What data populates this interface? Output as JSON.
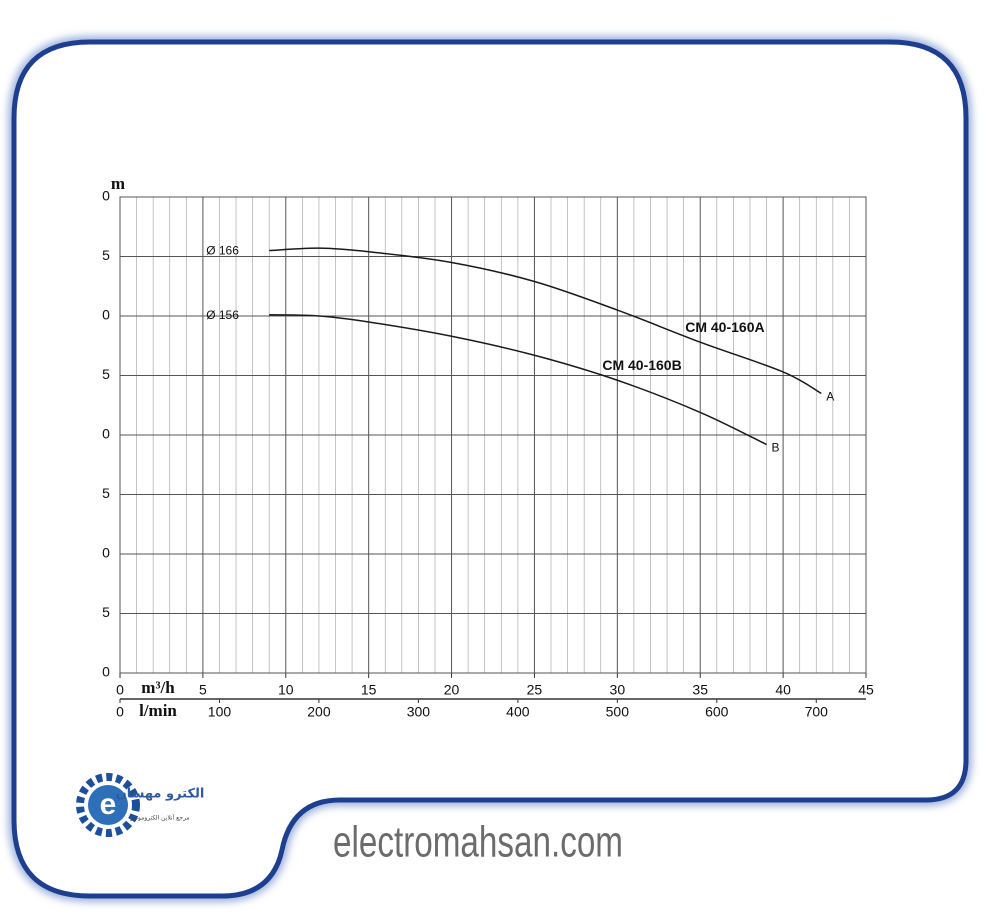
{
  "chart_data": {
    "type": "line",
    "ylabel": "m",
    "xlabel": "m³/h",
    "x2label": "l/min",
    "ylim": [
      0,
      40
    ],
    "yticks": [
      0,
      5,
      {
        "value": 10,
        "label": "0"
      },
      {
        "value": 15,
        "label": "5"
      },
      {
        "value": 20,
        "label": "0"
      },
      {
        "value": 25,
        "label": "5"
      },
      {
        "value": 30,
        "label": "0"
      },
      {
        "value": 35,
        "label": "5"
      },
      {
        "value": 40,
        "label": "0"
      }
    ],
    "xlim": [
      0,
      45
    ],
    "xticks": [
      0,
      5,
      10,
      15,
      20,
      25,
      30,
      35,
      40,
      45
    ],
    "xminorticks": [
      1,
      2,
      3,
      4,
      6,
      7,
      8,
      9,
      11,
      12,
      13,
      14,
      16,
      17,
      18,
      19,
      21,
      22,
      23,
      24,
      26,
      27,
      28,
      29,
      31,
      32,
      33,
      34,
      36,
      37,
      38,
      39,
      41,
      42,
      43,
      44
    ],
    "x2lim": [
      0,
      750
    ],
    "x2ticks": [
      0,
      100,
      200,
      300,
      400,
      500,
      600,
      700
    ],
    "grid": true,
    "series": [
      {
        "name": "CM 40-160A",
        "diameter_label": "Ø 166",
        "end_label": "A",
        "color": "#1a1a1a",
        "x": [
          9,
          12,
          15,
          20,
          25,
          30,
          35,
          40,
          42.3
        ],
        "values": [
          35.5,
          35.7,
          35.4,
          34.5,
          32.9,
          30.5,
          27.8,
          25.3,
          23.5
        ]
      },
      {
        "name": "CM 40-160B",
        "diameter_label": "Ø 156",
        "end_label": "B",
        "color": "#1a1a1a",
        "x": [
          9,
          12,
          15,
          20,
          25,
          30,
          35,
          39
        ],
        "values": [
          30.1,
          30.0,
          29.5,
          28.3,
          26.7,
          24.6,
          21.9,
          19.2
        ]
      }
    ]
  },
  "watermark": "electromahsan.com",
  "logo": {
    "title": "الکترو مهسان",
    "subtitle": "مرجع آنلاین الکتروموتور"
  }
}
